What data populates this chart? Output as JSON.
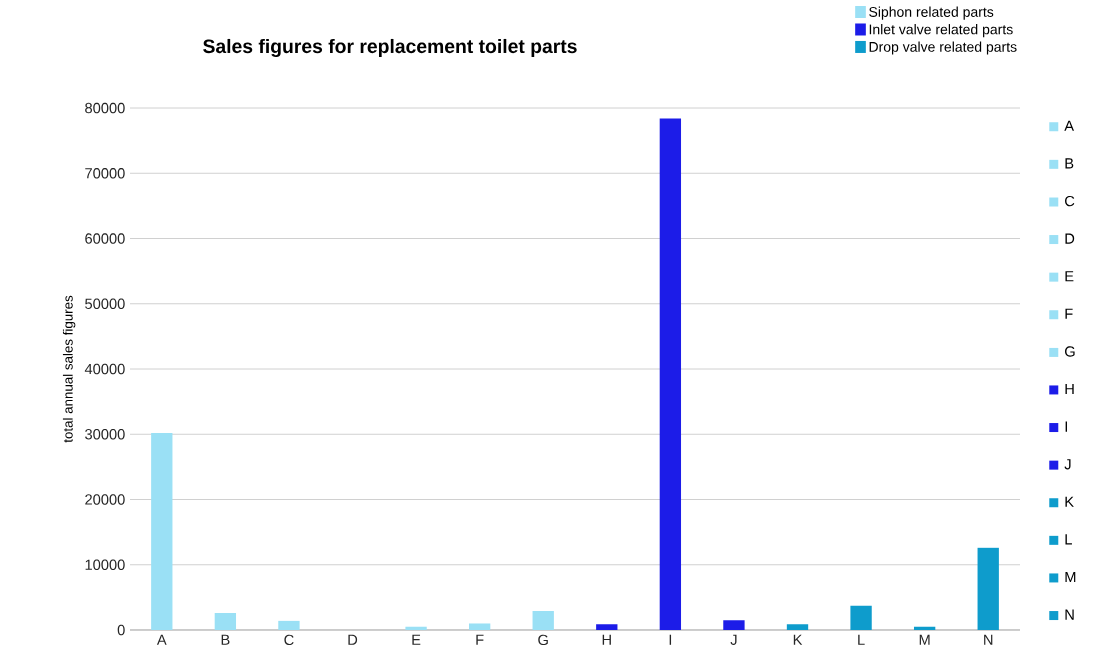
{
  "chart_data": {
    "type": "bar",
    "title": "Sales figures for replacement toilet parts",
    "ylabel": "total annual sales figures",
    "categories": [
      "A",
      "B",
      "C",
      "D",
      "E",
      "F",
      "G",
      "H",
      "I",
      "J",
      "K",
      "L",
      "M",
      "N"
    ],
    "series": [
      {
        "name": "Siphon related parts",
        "color": "#9ae0f5",
        "values": [
          30200,
          2600,
          1400,
          0,
          500,
          1000,
          2900,
          null,
          null,
          null,
          null,
          null,
          null,
          null
        ]
      },
      {
        "name": "Inlet valve related parts",
        "color": "#1c1ce8",
        "values": [
          null,
          null,
          null,
          null,
          null,
          null,
          null,
          900,
          78400,
          1500,
          null,
          null,
          null,
          null
        ]
      },
      {
        "name": "Drop valve related parts",
        "color": "#0e9ccc",
        "values": [
          null,
          null,
          null,
          null,
          null,
          null,
          null,
          null,
          null,
          null,
          900,
          3700,
          500,
          12600
        ]
      }
    ],
    "ylim": [
      0,
      80000
    ],
    "yticks": [
      0,
      10000,
      20000,
      30000,
      40000,
      50000,
      60000,
      70000,
      80000
    ],
    "grid": "y",
    "legend": "top right"
  }
}
